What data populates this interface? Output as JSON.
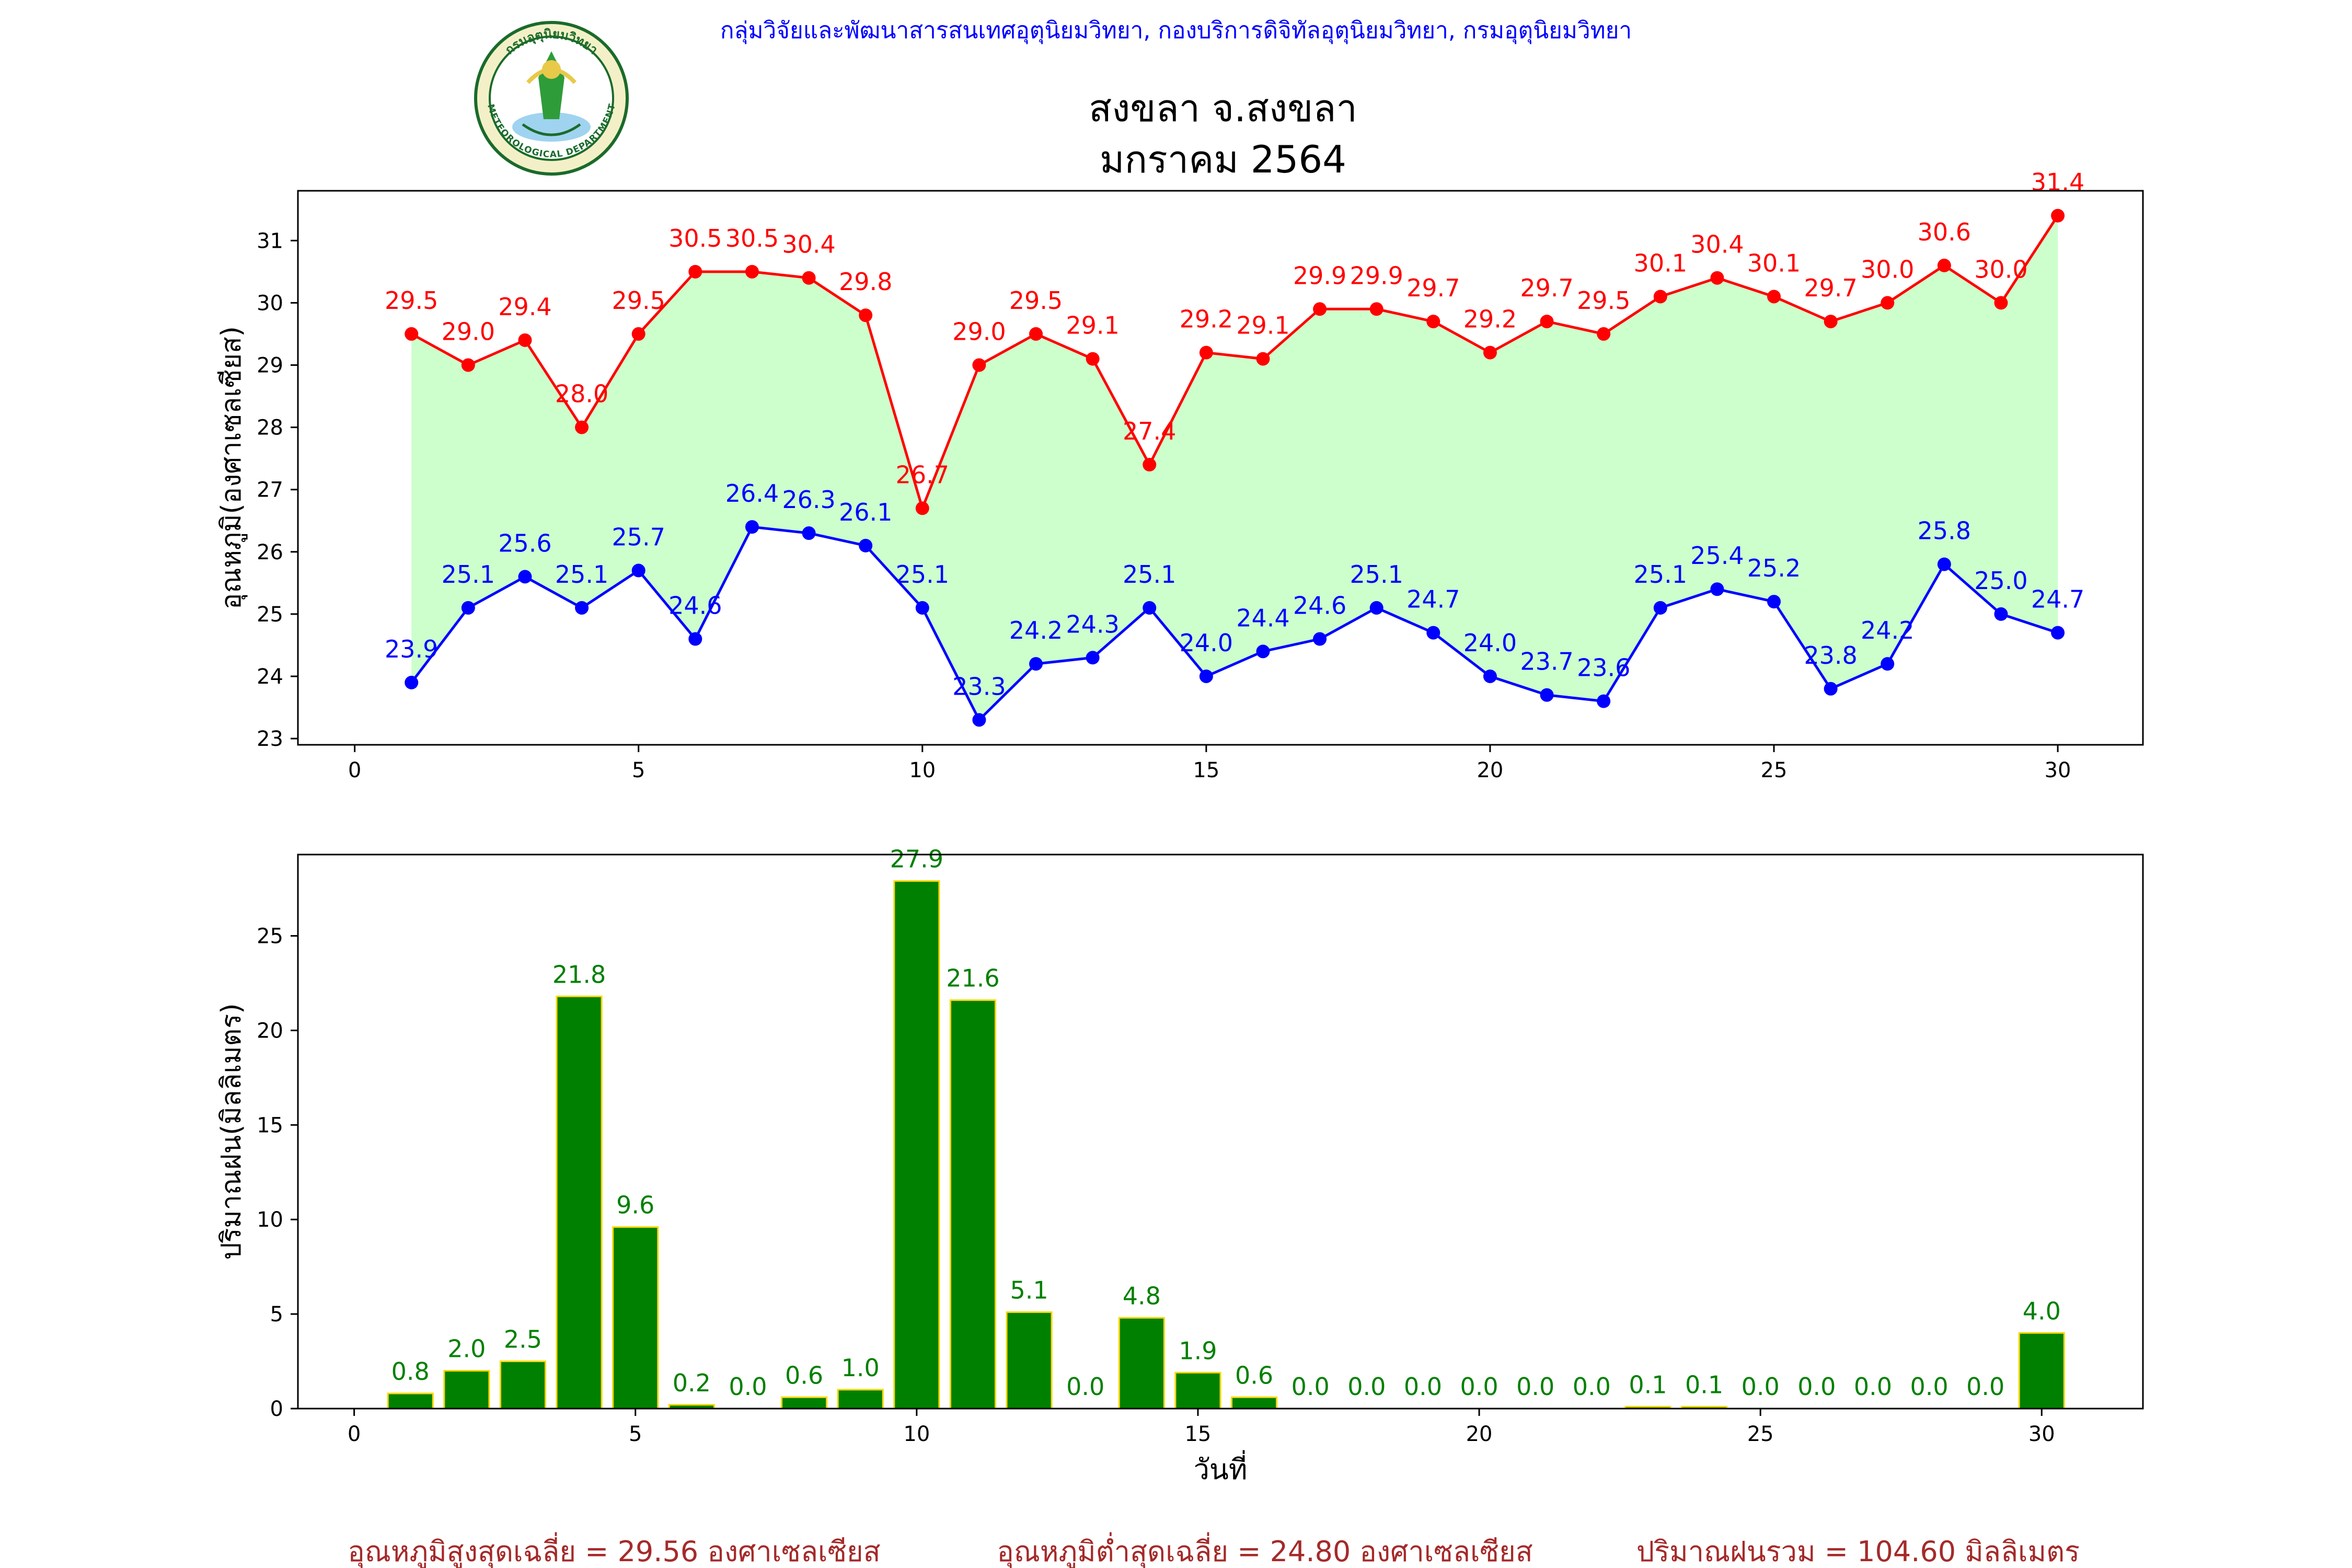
{
  "header": {
    "credit": "กลุ่มวิจัยและพัฒนาสารสนเทศอุตุนิยมวิทยา, กองบริการดิจิทัลอุตุนิยมวิทยา, กรมอุตุนิยมวิทยา",
    "title_line1": "สงขลา จ.สงขลา",
    "title_line2": "มกราคม 2564",
    "logo_text_top": "กรมอุตุนิยมวิทยา",
    "logo_text_bottom": "METEOROLOGICAL DEPARTMENT"
  },
  "footer": {
    "avg_max": "อุณหภูมิสูงสุดเฉลี่ย = 29.56 องศาเซลเซียส",
    "avg_min": "อุณหภูมิต่ำสุดเฉลี่ย = 24.80 องศาเซลเซียส",
    "rain_total": "ปริมาณฝนรวม = 104.60 มิลลิเมตร"
  },
  "colors": {
    "max_line": "#ff0000",
    "min_line": "#0000ff",
    "fill": "#ccffcc",
    "bar": "#008000",
    "bar_edge": "#ffd700",
    "bar_label": "#008000",
    "credit": "#0000ff",
    "footer": "#a52a2a"
  },
  "chart_data": [
    {
      "type": "line",
      "ylabel": "อุณหภูมิ(องศาเซลเซียส)",
      "x": [
        1,
        2,
        3,
        4,
        5,
        6,
        7,
        8,
        9,
        10,
        11,
        12,
        13,
        14,
        15,
        16,
        17,
        18,
        19,
        20,
        21,
        22,
        23,
        24,
        25,
        26,
        27,
        28,
        29,
        30
      ],
      "xlim": [
        -1,
        31.5
      ],
      "ylim": [
        22.9,
        31.8
      ],
      "xticks": [
        0,
        5,
        10,
        15,
        20,
        25,
        30
      ],
      "yticks": [
        23,
        24,
        25,
        26,
        27,
        28,
        29,
        30,
        31
      ],
      "grid": false,
      "fill_between": true,
      "series": [
        {
          "key": "max",
          "values": [
            29.5,
            29.0,
            29.4,
            28.0,
            29.5,
            30.5,
            30.5,
            30.4,
            29.8,
            26.7,
            29.0,
            29.5,
            29.1,
            27.4,
            29.2,
            29.1,
            29.9,
            29.9,
            29.7,
            29.2,
            29.7,
            29.5,
            30.1,
            30.4,
            30.1,
            29.7,
            30.0,
            30.6,
            30.0,
            31.4
          ]
        },
        {
          "key": "min",
          "values": [
            23.9,
            25.1,
            25.6,
            25.1,
            25.7,
            24.6,
            26.4,
            26.3,
            26.1,
            25.1,
            23.3,
            24.2,
            24.3,
            25.1,
            24.0,
            24.4,
            24.6,
            25.1,
            24.7,
            24.0,
            23.7,
            23.6,
            25.1,
            25.4,
            25.2,
            23.8,
            24.2,
            25.8,
            25.0,
            24.7
          ]
        }
      ]
    },
    {
      "type": "bar",
      "xlabel": "วันที่",
      "ylabel": "ปริมาณฝน(มิลลิเมตร)",
      "x": [
        1,
        2,
        3,
        4,
        5,
        6,
        7,
        8,
        9,
        10,
        11,
        12,
        13,
        14,
        15,
        16,
        17,
        18,
        19,
        20,
        21,
        22,
        23,
        24,
        25,
        26,
        27,
        28,
        29,
        30
      ],
      "values": [
        0.8,
        2.0,
        2.5,
        21.8,
        9.6,
        0.2,
        0.0,
        0.6,
        1.0,
        27.9,
        21.6,
        5.1,
        0.0,
        4.8,
        1.9,
        0.6,
        0.0,
        0.0,
        0.0,
        0.0,
        0.0,
        0.0,
        0.1,
        0.1,
        0.0,
        0.0,
        0.0,
        0.0,
        0.0,
        4.0
      ],
      "xlim": [
        -1,
        31.8
      ],
      "ylim": [
        0,
        29.3
      ],
      "xticks": [
        0,
        5,
        10,
        15,
        20,
        25,
        30
      ],
      "yticks": [
        0,
        5,
        10,
        15,
        20,
        25
      ],
      "grid": false
    }
  ]
}
